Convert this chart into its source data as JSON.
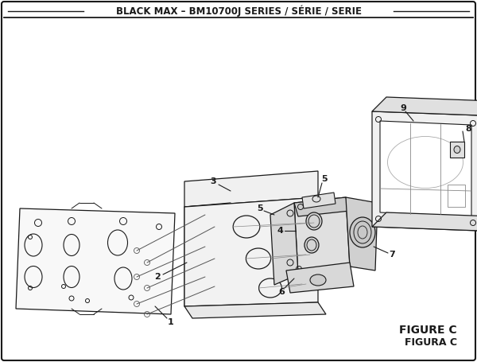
{
  "title": "BLACK MAX – BM10700J SERIES / SÉRIE / SERIE",
  "figure_label1": "FIGURE C",
  "figure_label2": "FIGURA C",
  "bg_color": "#ffffff",
  "line_color": "#1a1a1a",
  "title_fontsize": 8.5,
  "part_number_fontsize": 7.5,
  "fig_label_fontsize": 10
}
